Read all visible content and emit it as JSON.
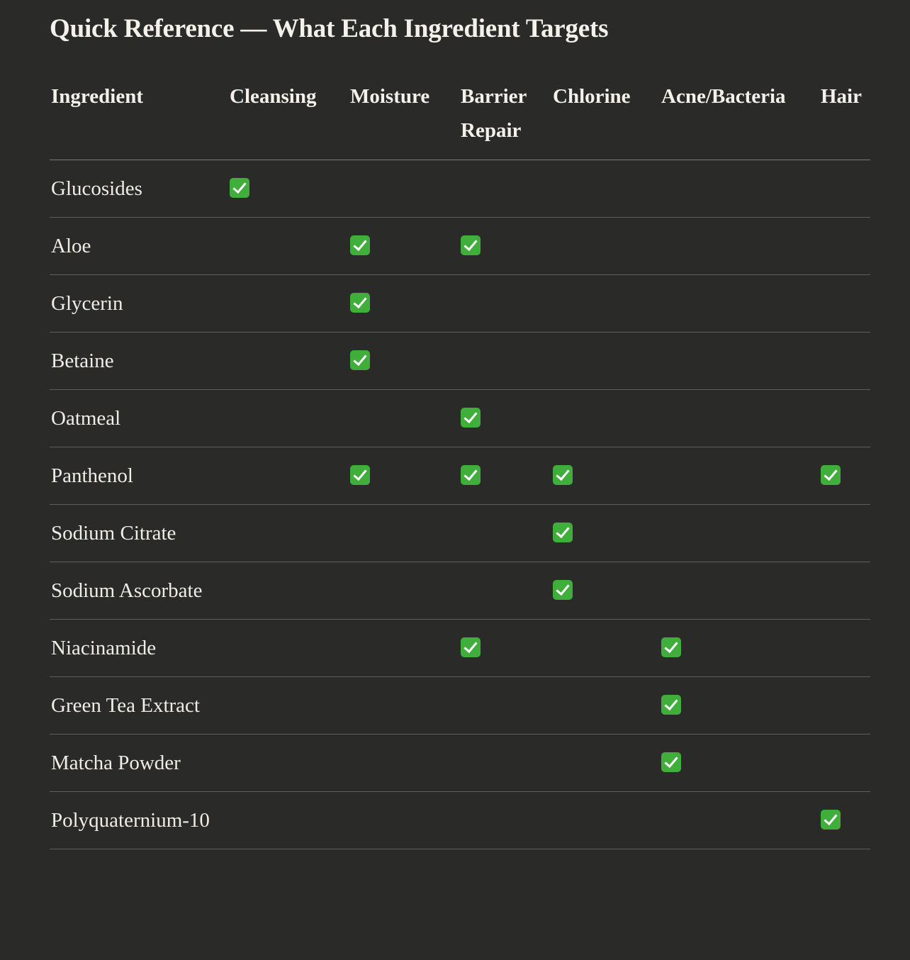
{
  "title": "Quick Reference — What Each Ingredient Targets",
  "table": {
    "headers": [
      "Ingredient",
      "Cleansing",
      "Moisture",
      "Barrier Repair",
      "Chlorine",
      "Acne/Bacteria",
      "Hair"
    ],
    "check_icon": "white-heavy-check-mark-icon",
    "check_color": "#3fae3a",
    "rows": [
      {
        "ingredient": "Glucosides",
        "targets": [
          true,
          false,
          false,
          false,
          false,
          false
        ]
      },
      {
        "ingredient": "Aloe",
        "targets": [
          false,
          true,
          true,
          false,
          false,
          false
        ]
      },
      {
        "ingredient": "Glycerin",
        "targets": [
          false,
          true,
          false,
          false,
          false,
          false
        ]
      },
      {
        "ingredient": "Betaine",
        "targets": [
          false,
          true,
          false,
          false,
          false,
          false
        ]
      },
      {
        "ingredient": "Oatmeal",
        "targets": [
          false,
          false,
          true,
          false,
          false,
          false
        ]
      },
      {
        "ingredient": "Panthenol",
        "targets": [
          false,
          true,
          true,
          true,
          false,
          true
        ]
      },
      {
        "ingredient": "Sodium Citrate",
        "targets": [
          false,
          false,
          false,
          true,
          false,
          false
        ]
      },
      {
        "ingredient": "Sodium Ascorbate",
        "targets": [
          false,
          false,
          false,
          true,
          false,
          false
        ]
      },
      {
        "ingredient": "Niacinamide",
        "targets": [
          false,
          false,
          true,
          false,
          true,
          false
        ]
      },
      {
        "ingredient": "Green Tea Extract",
        "targets": [
          false,
          false,
          false,
          false,
          true,
          false
        ]
      },
      {
        "ingredient": "Matcha Powder",
        "targets": [
          false,
          false,
          false,
          false,
          true,
          false
        ]
      },
      {
        "ingredient": "Polyquaternium-10",
        "targets": [
          false,
          false,
          false,
          false,
          false,
          true
        ]
      }
    ]
  }
}
